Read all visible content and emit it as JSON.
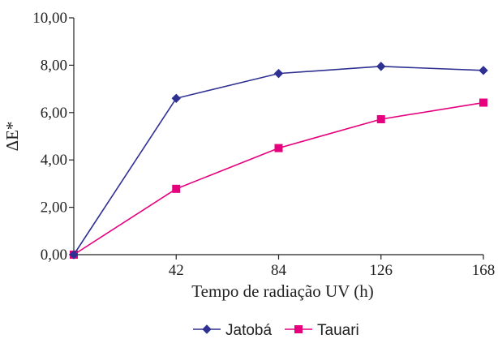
{
  "chart_data": {
    "type": "line",
    "title": "",
    "xlabel": "Tempo de radiação UV (h)",
    "ylabel": "ΔE*",
    "x": [
      0,
      42,
      84,
      126,
      168
    ],
    "x_tick_labels": [
      "42",
      "84",
      "126",
      "168"
    ],
    "y_tick_labels": [
      "0,00",
      "2,00",
      "4,00",
      "6,00",
      "8,00",
      "10,00"
    ],
    "xlim": [
      0,
      168
    ],
    "ylim": [
      0,
      10
    ],
    "grid": false,
    "legend_position": "bottom",
    "series": [
      {
        "name": "Jatobá",
        "color": "#2e3192",
        "marker": "diamond",
        "values": [
          0,
          6.6,
          7.65,
          7.95,
          7.78
        ]
      },
      {
        "name": "Tauari",
        "color": "#e6007e",
        "marker": "square",
        "values": [
          0,
          2.78,
          4.5,
          5.72,
          6.42
        ]
      }
    ]
  }
}
